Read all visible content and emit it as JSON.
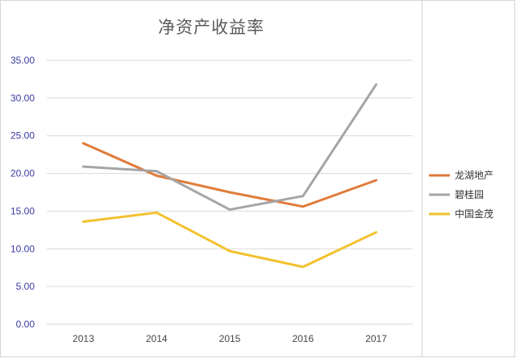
{
  "chart_data": {
    "type": "line",
    "title": "净资产收益率",
    "xlabel": "",
    "ylabel": "",
    "categories": [
      "2013",
      "2014",
      "2015",
      "2016",
      "2017"
    ],
    "ylim": [
      0,
      35
    ],
    "ytick_labels": [
      "0.00",
      "5.00",
      "10.00",
      "15.00",
      "20.00",
      "25.00",
      "30.00",
      "35.00"
    ],
    "grid": true,
    "legend_position": "right",
    "series": [
      {
        "name": "龙湖地产",
        "color": "#E07B39",
        "values": [
          24.0,
          19.7,
          17.5,
          15.6,
          19.1
        ]
      },
      {
        "name": "碧桂园",
        "color": "#A5A5A5",
        "values": [
          20.9,
          20.3,
          15.2,
          17.0,
          31.8
        ]
      },
      {
        "name": "中国金茂",
        "color": "#F2C12E",
        "values": [
          13.6,
          14.8,
          9.7,
          7.6,
          12.2
        ]
      }
    ]
  }
}
